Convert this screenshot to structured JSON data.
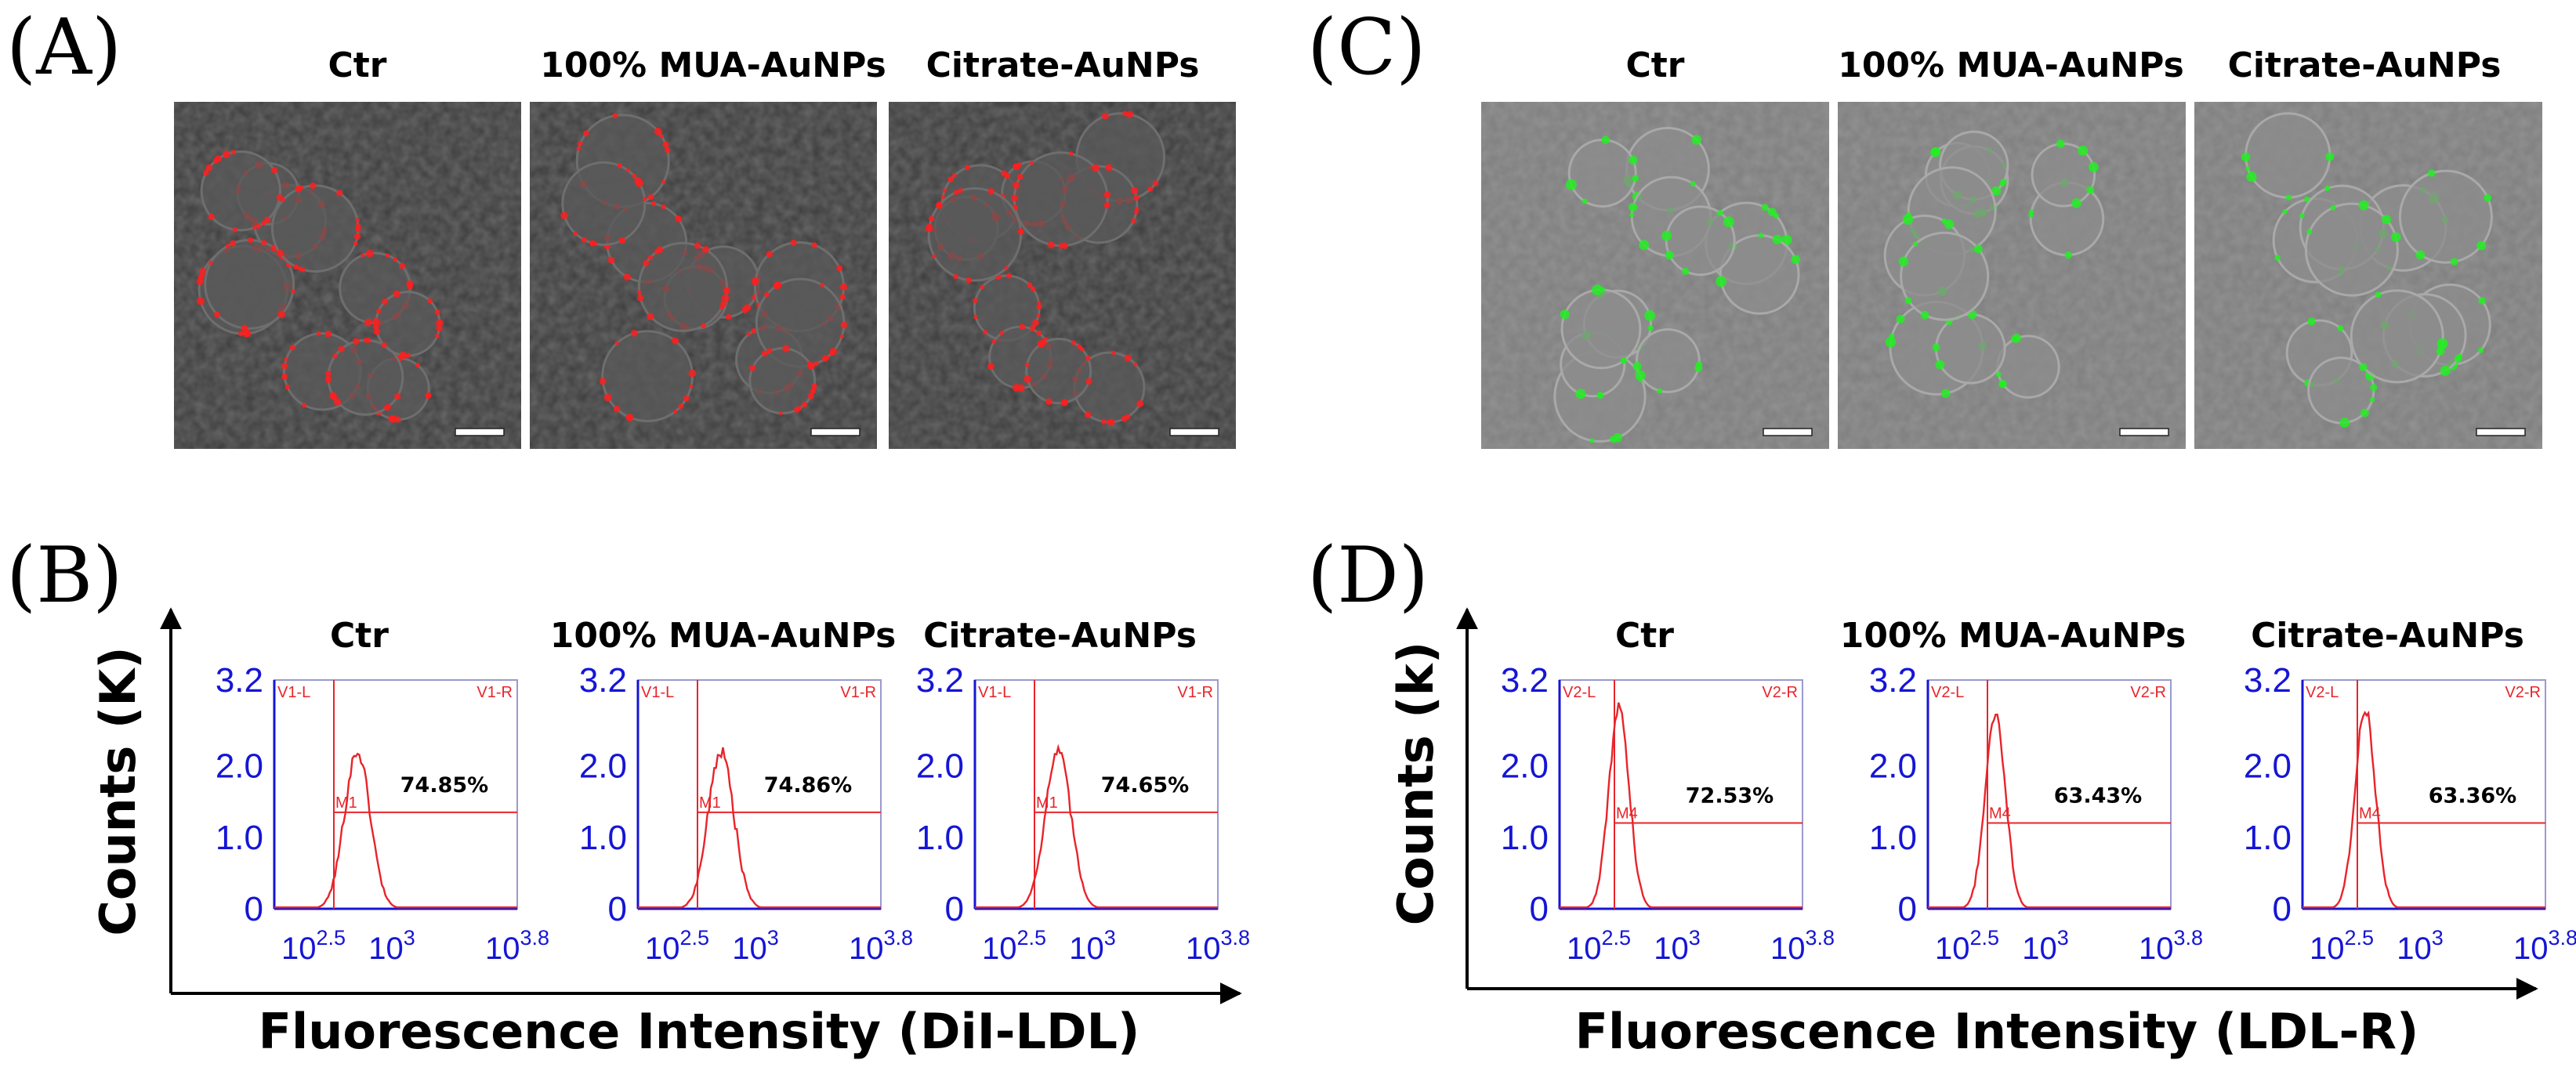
{
  "figure": {
    "panels": {
      "A": {
        "letter": "(A)",
        "images": [
          {
            "title": "Ctr",
            "stain": "red"
          },
          {
            "title": "100% MUA-AuNPs",
            "stain": "red"
          },
          {
            "title": "Citrate-AuNPs",
            "stain": "red"
          }
        ]
      },
      "C": {
        "letter": "(C)",
        "images": [
          {
            "title": "Ctr",
            "stain": "green"
          },
          {
            "title": "100% MUA-AuNPs",
            "stain": "green"
          },
          {
            "title": "Citrate-AuNPs",
            "stain": "green"
          }
        ]
      },
      "B": {
        "letter": "(B)",
        "y_axis_title": "Counts (K)",
        "x_axis_title": "Fluorescence Intensity (DiI-LDL)"
      },
      "D": {
        "letter": "(D)",
        "y_axis_title": "Counts (k)",
        "x_axis_title": "Fluorescence Intensity (LDL-R)"
      }
    }
  },
  "chart_data": [
    {
      "type": "histogram",
      "panel": "B",
      "title": "Ctr",
      "ylabel": "Counts (K)",
      "xlabel": "Fluorescence Intensity (DiI-LDL)",
      "xscale": "log",
      "xlim_log10": [
        2.25,
        3.8
      ],
      "ylim": [
        0,
        3.2
      ],
      "x_ticks_log10": [
        2.5,
        3,
        3.8
      ],
      "y_ticks": [
        0,
        1.0,
        2.0,
        3.2
      ],
      "gate_left_label": "V1-L",
      "gate_right_label": "V1-R",
      "gate_log10": 2.63,
      "marker_label": "M1",
      "marker_level": 1.35,
      "percent_label": "74.85%",
      "peak_log10": 2.78,
      "peak_counts": 2.2,
      "spread": 0.082,
      "color": "#e8242a"
    },
    {
      "type": "histogram",
      "panel": "B",
      "title": "100% MUA-AuNPs",
      "ylabel": "Counts (K)",
      "xlabel": "Fluorescence Intensity (DiI-LDL)",
      "xscale": "log",
      "xlim_log10": [
        2.25,
        3.8
      ],
      "ylim": [
        0,
        3.2
      ],
      "x_ticks_log10": [
        2.5,
        3,
        3.8
      ],
      "y_ticks": [
        0,
        1.0,
        2.0,
        3.2
      ],
      "gate_left_label": "V1-L",
      "gate_right_label": "V1-R",
      "gate_log10": 2.63,
      "marker_label": "M1",
      "marker_level": 1.35,
      "percent_label": "74.86%",
      "peak_log10": 2.78,
      "peak_counts": 2.2,
      "spread": 0.082,
      "color": "#e8242a"
    },
    {
      "type": "histogram",
      "panel": "B",
      "title": "Citrate-AuNPs",
      "ylabel": "Counts (K)",
      "xlabel": "Fluorescence Intensity (DiI-LDL)",
      "xscale": "log",
      "xlim_log10": [
        2.25,
        3.8
      ],
      "ylim": [
        0,
        3.2
      ],
      "x_ticks_log10": [
        2.5,
        3,
        3.8
      ],
      "y_ticks": [
        0,
        1.0,
        2.0,
        3.2
      ],
      "gate_left_label": "V1-L",
      "gate_right_label": "V1-R",
      "gate_log10": 2.63,
      "marker_label": "M1",
      "marker_level": 1.35,
      "percent_label": "74.65%",
      "peak_log10": 2.78,
      "peak_counts": 2.2,
      "spread": 0.082,
      "color": "#e8242a"
    },
    {
      "type": "histogram",
      "panel": "D",
      "title": "Ctr",
      "ylabel": "Counts (k)",
      "xlabel": "Fluorescence Intensity (LDL-R)",
      "xscale": "log",
      "xlim_log10": [
        2.25,
        3.8
      ],
      "ylim": [
        0,
        3.2
      ],
      "x_ticks_log10": [
        2.5,
        3,
        3.8
      ],
      "y_ticks": [
        0,
        1.0,
        2.0,
        3.2
      ],
      "gate_left_label": "V2-L",
      "gate_right_label": "V2-R",
      "gate_log10": 2.6,
      "marker_label": "M4",
      "marker_level": 1.2,
      "percent_label": "72.53%",
      "peak_log10": 2.63,
      "peak_counts": 2.8,
      "spread": 0.065,
      "color": "#e8242a"
    },
    {
      "type": "histogram",
      "panel": "D",
      "title": "100% MUA-AuNPs",
      "ylabel": "Counts (k)",
      "xlabel": "Fluorescence Intensity (LDL-R)",
      "xscale": "log",
      "xlim_log10": [
        2.25,
        3.8
      ],
      "ylim": [
        0,
        3.2
      ],
      "x_ticks_log10": [
        2.5,
        3,
        3.8
      ],
      "y_ticks": [
        0,
        1.0,
        2.0,
        3.2
      ],
      "gate_left_label": "V2-L",
      "gate_right_label": "V2-R",
      "gate_log10": 2.63,
      "marker_label": "M4",
      "marker_level": 1.2,
      "percent_label": "63.43%",
      "peak_log10": 2.68,
      "peak_counts": 2.7,
      "spread": 0.065,
      "color": "#e8242a"
    },
    {
      "type": "histogram",
      "panel": "D",
      "title": "Citrate-AuNPs",
      "ylabel": "Counts (k)",
      "xlabel": "Fluorescence Intensity (LDL-R)",
      "xscale": "log",
      "xlim_log10": [
        2.25,
        3.8
      ],
      "ylim": [
        0,
        3.2
      ],
      "x_ticks_log10": [
        2.5,
        3,
        3.8
      ],
      "y_ticks": [
        0,
        1.0,
        2.0,
        3.2
      ],
      "gate_left_label": "V2-L",
      "gate_right_label": "V2-R",
      "gate_log10": 2.6,
      "marker_label": "M4",
      "marker_level": 1.2,
      "percent_label": "63.36%",
      "peak_log10": 2.65,
      "peak_counts": 2.8,
      "spread": 0.065,
      "color": "#e8242a"
    }
  ]
}
